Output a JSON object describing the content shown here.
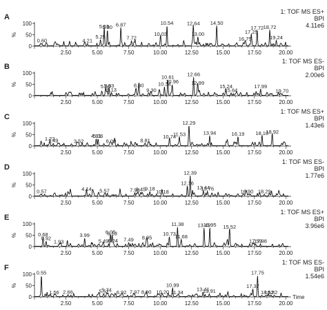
{
  "chart_data": [
    {
      "type": "line",
      "panel_label": "A",
      "header": "1: TOF MS ES+",
      "subheader": "BPI",
      "scale": "4.11e6",
      "ylabel": "%",
      "yticks": [
        "0",
        "50",
        "100"
      ],
      "xticks": [
        "2.50",
        "5.00",
        "7.50",
        "10.00",
        "12.50",
        "15.00",
        "17.50",
        "20.00"
      ],
      "xlim": [
        0,
        20.2
      ],
      "ylim": [
        0,
        100
      ],
      "peaks": [
        {
          "x": 0.6,
          "y": 10,
          "label": "0.60"
        },
        {
          "x": 4.21,
          "y": 10,
          "label": "4.21"
        },
        {
          "x": 5.25,
          "y": 28,
          "label": "5.25"
        },
        {
          "x": 5.55,
          "y": 72,
          "label": "5.55"
        },
        {
          "x": 5.8,
          "y": 70,
          "label": "5.80"
        },
        {
          "x": 6.87,
          "y": 80,
          "label": "6.87"
        },
        {
          "x": 7.72,
          "y": 22,
          "label": "7.72"
        },
        {
          "x": 10.03,
          "y": 40,
          "label": "10.03"
        },
        {
          "x": 10.54,
          "y": 88,
          "label": "10.54"
        },
        {
          "x": 12.64,
          "y": 86,
          "label": "12.64"
        },
        {
          "x": 13.0,
          "y": 40,
          "label": "13.00"
        },
        {
          "x": 14.5,
          "y": 88,
          "label": "14.50"
        },
        {
          "x": 16.75,
          "y": 18,
          "label": "16.75"
        },
        {
          "x": 17.25,
          "y": 48,
          "label": "17.25"
        },
        {
          "x": 17.72,
          "y": 66,
          "label": "17.72"
        },
        {
          "x": 18.72,
          "y": 70,
          "label": "18.72"
        },
        {
          "x": 19.24,
          "y": 25,
          "label": "19.24"
        }
      ]
    },
    {
      "type": "line",
      "panel_label": "B",
      "header": "1: TOF MS ES-",
      "subheader": "BPI",
      "scale": "2.00e6",
      "ylabel": "%",
      "yticks": [
        "0",
        "50",
        "100"
      ],
      "xticks": [
        "2.50",
        "5.00",
        "7.50",
        "10.00",
        "12.50",
        "15.00",
        "17.50",
        "20.00"
      ],
      "xlim": [
        0,
        20.2
      ],
      "ylim": [
        0,
        100
      ],
      "peaks": [
        {
          "x": 5.66,
          "y": 28,
          "label": "5.66"
        },
        {
          "x": 5.93,
          "y": 30,
          "label": "5.93"
        },
        {
          "x": 6.13,
          "y": 12,
          "label": "6.13"
        },
        {
          "x": 8.3,
          "y": 32,
          "label": "8.30"
        },
        {
          "x": 9.3,
          "y": 10,
          "label": "9.30"
        },
        {
          "x": 10.34,
          "y": 38,
          "label": "10.34"
        },
        {
          "x": 10.61,
          "y": 68,
          "label": "10.61"
        },
        {
          "x": 10.96,
          "y": 48,
          "label": "10.96"
        },
        {
          "x": 12.66,
          "y": 80,
          "label": "12.66"
        },
        {
          "x": 12.99,
          "y": 42,
          "label": "12.99"
        },
        {
          "x": 15.24,
          "y": 28,
          "label": "15.24"
        },
        {
          "x": 15.64,
          "y": 10,
          "label": "15.64"
        },
        {
          "x": 17.99,
          "y": 28,
          "label": "17.99"
        },
        {
          "x": 19.7,
          "y": 8,
          "label": "19.70"
        }
      ]
    },
    {
      "type": "line",
      "panel_label": "C",
      "header": "1: TOF MS ES+",
      "subheader": "BPI",
      "scale": "1.43e6",
      "ylabel": "%",
      "yticks": [
        "0",
        "50",
        "100"
      ],
      "xticks": [
        "2.50",
        "5.00",
        "7.50",
        "10.00",
        "12.50",
        "15.00",
        "17.50",
        "20.00"
      ],
      "xlim": [
        0,
        20.2
      ],
      "ylim": [
        0,
        100
      ],
      "peaks": [
        {
          "x": 1.22,
          "y": 18,
          "label": "1.22"
        },
        {
          "x": 1.49,
          "y": 10,
          "label": "1.49"
        },
        {
          "x": 3.52,
          "y": 8,
          "label": "3.52"
        },
        {
          "x": 4.91,
          "y": 30,
          "label": "4.91"
        },
        {
          "x": 5.06,
          "y": 30,
          "label": "5.06"
        },
        {
          "x": 6.09,
          "y": 8,
          "label": "6.09"
        },
        {
          "x": 8.81,
          "y": 10,
          "label": "8.81"
        },
        {
          "x": 10.74,
          "y": 28,
          "label": "10.74"
        },
        {
          "x": 11.53,
          "y": 38,
          "label": "11.53"
        },
        {
          "x": 12.29,
          "y": 88,
          "label": "12.29"
        },
        {
          "x": 13.94,
          "y": 44,
          "label": "13.94"
        },
        {
          "x": 16.19,
          "y": 40,
          "label": "16.19"
        },
        {
          "x": 18.1,
          "y": 42,
          "label": "18.10"
        },
        {
          "x": 18.92,
          "y": 48,
          "label": "18.92"
        }
      ]
    },
    {
      "type": "line",
      "panel_label": "D",
      "header": "1: TOF MS ES-",
      "subheader": "BPI",
      "scale": "1.77e6",
      "ylabel": "%",
      "yticks": [
        "0",
        "50",
        "100"
      ],
      "xticks": [
        "2.50",
        "5.00",
        "7.50",
        "10.00",
        "12.50",
        "15.00",
        "17.50",
        "20.00"
      ],
      "xlim": [
        0,
        20.2
      ],
      "ylim": [
        0,
        100
      ],
      "peaks": [
        {
          "x": 0.57,
          "y": 8,
          "label": "0.57"
        },
        {
          "x": 4.14,
          "y": 18,
          "label": "4.14"
        },
        {
          "x": 5.57,
          "y": 10,
          "label": "5.57"
        },
        {
          "x": 7.98,
          "y": 14,
          "label": "7.98"
        },
        {
          "x": 8.45,
          "y": 16,
          "label": "8.45"
        },
        {
          "x": 9.18,
          "y": 20,
          "label": "9.18"
        },
        {
          "x": 10.18,
          "y": 6,
          "label": "10.18"
        },
        {
          "x": 12.16,
          "y": 44,
          "label": "12.16"
        },
        {
          "x": 12.39,
          "y": 90,
          "label": "12.39"
        },
        {
          "x": 13.44,
          "y": 24,
          "label": "13.44"
        },
        {
          "x": 13.76,
          "y": 20,
          "label": "13.76"
        },
        {
          "x": 16.9,
          "y": 8,
          "label": "16.90"
        },
        {
          "x": 18.29,
          "y": 8,
          "label": "18.29"
        }
      ]
    },
    {
      "type": "line",
      "panel_label": "E",
      "header": "1: TOF MS ES+",
      "subheader": "BPI",
      "scale": "3.96e6",
      "ylabel": "%",
      "yticks": [
        "0",
        "50",
        "100"
      ],
      "xticks": [
        "2.50",
        "5.00",
        "7.50",
        "10.00",
        "12.50",
        "15.00",
        "17.50",
        "20.00"
      ],
      "xlim": [
        0,
        20.2
      ],
      "ylim": [
        0,
        100
      ],
      "peaks": [
        {
          "x": 0.68,
          "y": 40,
          "label": "0.68"
        },
        {
          "x": 0.92,
          "y": 22,
          "label": "0.92"
        },
        {
          "x": 1.93,
          "y": 8,
          "label": "1.93"
        },
        {
          "x": 3.99,
          "y": 36,
          "label": "3.99"
        },
        {
          "x": 5.49,
          "y": 10,
          "label": "5.49"
        },
        {
          "x": 6.05,
          "y": 50,
          "label": "6.05"
        },
        {
          "x": 6.18,
          "y": 44,
          "label": "6.18"
        },
        {
          "x": 6.24,
          "y": 12,
          "label": "6.24"
        },
        {
          "x": 7.49,
          "y": 16,
          "label": "7.49"
        },
        {
          "x": 8.95,
          "y": 26,
          "label": "8.95"
        },
        {
          "x": 10.73,
          "y": 42,
          "label": "10.73"
        },
        {
          "x": 11.38,
          "y": 85,
          "label": "11.38"
        },
        {
          "x": 11.68,
          "y": 30,
          "label": "11.68"
        },
        {
          "x": 13.49,
          "y": 80,
          "label": "13.49"
        },
        {
          "x": 13.95,
          "y": 82,
          "label": "13.95"
        },
        {
          "x": 15.52,
          "y": 72,
          "label": "15.52"
        },
        {
          "x": 17.59,
          "y": 10,
          "label": "17.59"
        },
        {
          "x": 17.98,
          "y": 10,
          "label": "17.98"
        }
      ]
    },
    {
      "type": "line",
      "panel_label": "F",
      "header": "1: TOF MS ES-",
      "subheader": "BPI",
      "scale": "1.54e6",
      "ylabel": "%",
      "yticks": [
        "0",
        "50",
        "100"
      ],
      "xticks": [
        "2.50",
        "5.00",
        "7.50",
        "10.00",
        "12.50",
        "15.00",
        "17.50",
        "20.00"
      ],
      "xlabel": "Time",
      "xlim": [
        0,
        20.2
      ],
      "ylim": [
        0,
        100
      ],
      "peaks": [
        {
          "x": 0.55,
          "y": 92,
          "label": "0.55"
        },
        {
          "x": 1.56,
          "y": 6,
          "label": "1.56"
        },
        {
          "x": 2.66,
          "y": 8,
          "label": "2.66"
        },
        {
          "x": 5.52,
          "y": 10,
          "label": "5.52"
        },
        {
          "x": 5.74,
          "y": 16,
          "label": "5.74"
        },
        {
          "x": 6.92,
          "y": 6,
          "label": "6.92"
        },
        {
          "x": 7.97,
          "y": 8,
          "label": "7.97"
        },
        {
          "x": 8.9,
          "y": 8,
          "label": "8.90"
        },
        {
          "x": 10.2,
          "y": 8,
          "label": "10.20"
        },
        {
          "x": 10.99,
          "y": 38,
          "label": "10.99"
        },
        {
          "x": 11.34,
          "y": 6,
          "label": "11.34"
        },
        {
          "x": 13.41,
          "y": 20,
          "label": "13.41"
        },
        {
          "x": 13.91,
          "y": 12,
          "label": "13.91"
        },
        {
          "x": 17.37,
          "y": 34,
          "label": "17.37"
        },
        {
          "x": 17.75,
          "y": 92,
          "label": "17.75"
        },
        {
          "x": 18.52,
          "y": 6,
          "label": "18.52"
        },
        {
          "x": 18.82,
          "y": 6,
          "label": "18.82"
        }
      ]
    }
  ]
}
